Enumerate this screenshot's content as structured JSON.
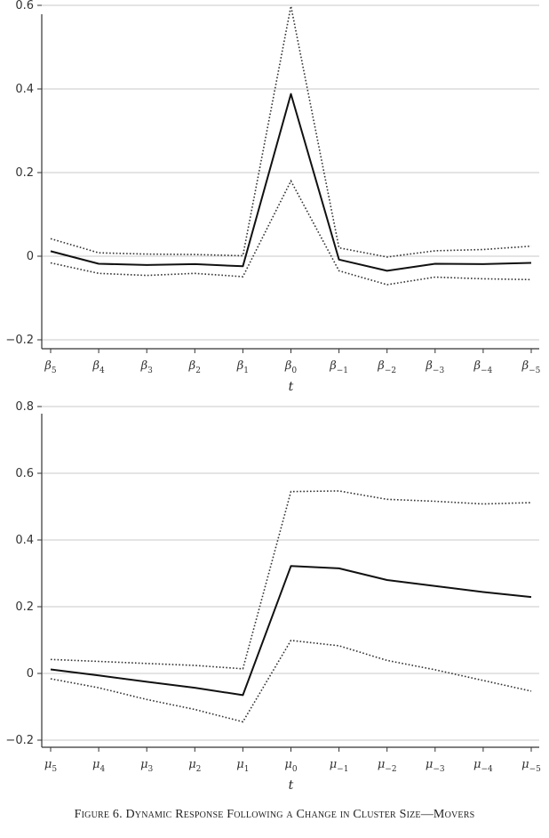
{
  "caption": "Figure 6. Dynamic Response Following a Change in Cluster Size—Movers",
  "chart_data": [
    {
      "type": "line",
      "xlabel": "t",
      "ylabel": "",
      "ylim": [
        -0.2,
        0.6
      ],
      "yticks": [
        "−0.2",
        "0",
        "0.2",
        "0.4",
        "0.6"
      ],
      "grid": true,
      "tick_symbol": "β",
      "tick_subscripts": [
        "5",
        "4",
        "3",
        "2",
        "1",
        "0",
        "−1",
        "−2",
        "−3",
        "−4",
        "−5"
      ],
      "categories": [
        "β5",
        "β4",
        "β3",
        "β2",
        "β1",
        "β0",
        "β−1",
        "β−2",
        "β−3",
        "β−4",
        "β−5"
      ],
      "series": [
        {
          "role": "estimate",
          "style": "solid",
          "color": "#111111",
          "values": [
            0.012,
            -0.018,
            -0.021,
            -0.019,
            -0.024,
            0.388,
            -0.008,
            -0.035,
            -0.018,
            -0.019,
            -0.016
          ]
        },
        {
          "role": "upper",
          "style": "dotted",
          "color": "#333333",
          "values": [
            0.042,
            0.008,
            0.005,
            0.004,
            0.001,
            0.598,
            0.02,
            -0.002,
            0.013,
            0.016,
            0.024
          ]
        },
        {
          "role": "lower",
          "style": "dotted",
          "color": "#333333",
          "values": [
            -0.016,
            -0.041,
            -0.046,
            -0.041,
            -0.049,
            0.18,
            -0.035,
            -0.068,
            -0.05,
            -0.054,
            -0.056
          ]
        }
      ]
    },
    {
      "type": "line",
      "xlabel": "t",
      "ylabel": "",
      "ylim": [
        -0.2,
        0.8
      ],
      "yticks": [
        "−0.2",
        "0",
        "0.2",
        "0.4",
        "0.6",
        "0.8"
      ],
      "grid": true,
      "tick_symbol": "μ",
      "tick_subscripts": [
        "5",
        "4",
        "3",
        "2",
        "1",
        "0",
        "−1",
        "−2",
        "−3",
        "−4",
        "−5"
      ],
      "categories": [
        "μ5",
        "μ4",
        "μ3",
        "μ2",
        "μ1",
        "μ0",
        "μ−1",
        "μ−2",
        "μ−3",
        "μ−4",
        "μ−5"
      ],
      "series": [
        {
          "role": "estimate",
          "style": "solid",
          "color": "#111111",
          "values": [
            0.012,
            -0.006,
            -0.025,
            -0.043,
            -0.065,
            0.322,
            0.315,
            0.28,
            0.262,
            0.244,
            0.229
          ]
        },
        {
          "role": "upper",
          "style": "dotted",
          "color": "#333333",
          "values": [
            0.042,
            0.036,
            0.03,
            0.024,
            0.014,
            0.545,
            0.547,
            0.522,
            0.516,
            0.508,
            0.512
          ]
        },
        {
          "role": "lower",
          "style": "dotted",
          "color": "#333333",
          "values": [
            -0.016,
            -0.043,
            -0.078,
            -0.108,
            -0.145,
            0.099,
            0.083,
            0.039,
            0.011,
            -0.021,
            -0.053
          ]
        }
      ]
    }
  ]
}
